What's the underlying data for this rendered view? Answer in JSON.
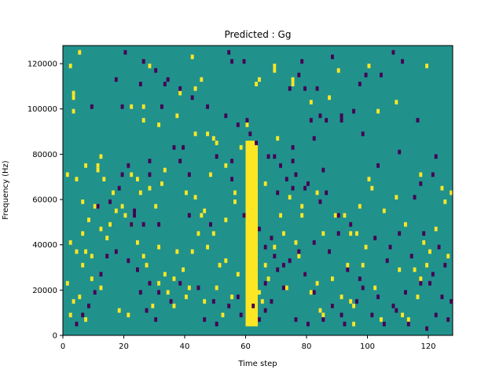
{
  "chart_data": {
    "type": "heatmap",
    "title": "Predicted : Gg",
    "xlabel": "Time step",
    "ylabel": "Frequency (Hz)",
    "xlim": [
      0,
      128
    ],
    "ylim": [
      0,
      128000
    ],
    "xticks": [
      0,
      20,
      40,
      60,
      80,
      100,
      120
    ],
    "yticks": [
      0,
      20000,
      40000,
      60000,
      80000,
      100000,
      120000
    ],
    "grid": false,
    "colors": {
      "background": "#21918c",
      "high": "#fde725",
      "low": "#440154"
    },
    "n_time_steps": 128,
    "n_freq_bins": 64,
    "bin_width_hz": 2000,
    "dominant_band": {
      "time_steps": [
        60,
        64
      ],
      "freq_hz": [
        4000,
        86000
      ],
      "level": "high"
    },
    "cells_high": [
      [
        5,
        124000
      ],
      [
        42,
        122000
      ],
      [
        2,
        118000
      ],
      [
        28,
        118000
      ],
      [
        69,
        118000
      ],
      [
        69,
        116000
      ],
      [
        100,
        118000
      ],
      [
        119,
        118000
      ],
      [
        45,
        112000
      ],
      [
        75,
        112000
      ],
      [
        3,
        106000
      ],
      [
        43,
        108000
      ],
      [
        3,
        104000
      ],
      [
        64,
        112000
      ],
      [
        63,
        110000
      ],
      [
        90,
        116000
      ],
      [
        75,
        110000
      ],
      [
        38,
        106000
      ],
      [
        22,
        100000
      ],
      [
        26,
        100000
      ],
      [
        109,
        102000
      ],
      [
        87,
        104000
      ],
      [
        81,
        102000
      ],
      [
        3,
        98000
      ],
      [
        37,
        96000
      ],
      [
        103,
        98000
      ],
      [
        26,
        94000
      ],
      [
        31,
        92000
      ],
      [
        60,
        92000
      ],
      [
        43,
        88000
      ],
      [
        47,
        88000
      ],
      [
        49,
        86000
      ],
      [
        50,
        84000
      ],
      [
        58,
        82000
      ],
      [
        70,
        86000
      ],
      [
        1,
        70000
      ],
      [
        7,
        74000
      ],
      [
        4,
        68000
      ],
      [
        12,
        78000
      ],
      [
        11,
        74000
      ],
      [
        48,
        70000
      ],
      [
        53,
        74000
      ],
      [
        60,
        74000
      ],
      [
        33,
        72000
      ],
      [
        22,
        70000
      ],
      [
        24,
        68000
      ],
      [
        100,
        68000
      ],
      [
        117,
        70000
      ],
      [
        109,
        60000
      ],
      [
        124,
        64000
      ],
      [
        6,
        58000
      ],
      [
        10,
        56000
      ],
      [
        17,
        54000
      ],
      [
        30,
        56000
      ],
      [
        46,
        54000
      ],
      [
        56,
        58000
      ],
      [
        53,
        50000
      ],
      [
        60,
        48000
      ],
      [
        12,
        46000
      ],
      [
        15,
        48000
      ],
      [
        71,
        52000
      ],
      [
        78,
        52000
      ],
      [
        85,
        44000
      ],
      [
        94,
        44000
      ],
      [
        2,
        40000
      ],
      [
        7,
        36000
      ],
      [
        26,
        34000
      ],
      [
        31,
        38000
      ],
      [
        37,
        36000
      ],
      [
        47,
        38000
      ],
      [
        53,
        32000
      ],
      [
        66,
        30000
      ],
      [
        77,
        34000
      ],
      [
        98,
        30000
      ],
      [
        110,
        28000
      ],
      [
        115,
        28000
      ],
      [
        1,
        22000
      ],
      [
        9,
        24000
      ],
      [
        12,
        20000
      ],
      [
        33,
        26000
      ],
      [
        36,
        24000
      ],
      [
        41,
        20000
      ],
      [
        50,
        20000
      ],
      [
        64,
        18000
      ],
      [
        73,
        20000
      ],
      [
        83,
        22000
      ],
      [
        88,
        24000
      ],
      [
        94,
        14000
      ],
      [
        95,
        12000
      ],
      [
        2,
        8000
      ],
      [
        7,
        6000
      ],
      [
        18,
        10000
      ],
      [
        21,
        8000
      ],
      [
        29,
        12000
      ],
      [
        40,
        16000
      ],
      [
        46,
        14000
      ],
      [
        52,
        8000
      ],
      [
        84,
        10000
      ],
      [
        95,
        4000
      ],
      [
        113,
        6000
      ],
      [
        3,
        14000
      ],
      [
        5,
        16000
      ],
      [
        6,
        30000
      ],
      [
        9,
        34000
      ],
      [
        14,
        42000
      ],
      [
        20,
        52000
      ],
      [
        25,
        62000
      ],
      [
        28,
        64000
      ],
      [
        32,
        66000
      ],
      [
        40,
        62000
      ],
      [
        43,
        60000
      ],
      [
        56,
        62000
      ],
      [
        66,
        66000
      ],
      [
        74,
        60000
      ],
      [
        78,
        56000
      ],
      [
        83,
        62000
      ],
      [
        89,
        52000
      ],
      [
        92,
        52000
      ],
      [
        97,
        56000
      ],
      [
        101,
        64000
      ],
      [
        105,
        54000
      ],
      [
        112,
        48000
      ],
      [
        118,
        40000
      ],
      [
        120,
        36000
      ],
      [
        126,
        34000
      ],
      [
        127,
        62000
      ],
      [
        125,
        58000
      ],
      [
        122,
        46000
      ],
      [
        119,
        30000
      ],
      [
        117,
        24000
      ],
      [
        116,
        16000
      ],
      [
        111,
        8000
      ],
      [
        104,
        6000
      ],
      [
        102,
        20000
      ],
      [
        99,
        38000
      ],
      [
        96,
        44000
      ],
      [
        93,
        30000
      ],
      [
        91,
        16000
      ],
      [
        88,
        12000
      ],
      [
        85,
        8000
      ],
      [
        81,
        18000
      ],
      [
        79,
        26000
      ],
      [
        76,
        40000
      ],
      [
        72,
        44000
      ],
      [
        69,
        38000
      ],
      [
        67,
        24000
      ],
      [
        65,
        14000
      ],
      [
        57,
        26000
      ],
      [
        55,
        16000
      ],
      [
        51,
        30000
      ],
      [
        49,
        44000
      ],
      [
        45,
        52000
      ],
      [
        44,
        44000
      ],
      [
        42,
        36000
      ],
      [
        39,
        28000
      ],
      [
        36,
        12000
      ],
      [
        34,
        18000
      ],
      [
        31,
        22000
      ],
      [
        27,
        30000
      ],
      [
        24,
        40000
      ],
      [
        22,
        48000
      ],
      [
        19,
        56000
      ],
      [
        16,
        62000
      ],
      [
        13,
        68000
      ],
      [
        11,
        72000
      ],
      [
        8,
        50000
      ],
      [
        6,
        44000
      ],
      [
        4,
        36000
      ]
    ],
    "cells_low": [
      [
        54,
        124000
      ],
      [
        55,
        120000
      ],
      [
        59,
        120000
      ],
      [
        78,
        120000
      ],
      [
        108,
        124000
      ],
      [
        111,
        120000
      ],
      [
        88,
        122000
      ],
      [
        77,
        114000
      ],
      [
        99,
        114000
      ],
      [
        97,
        110000
      ],
      [
        25,
        110000
      ],
      [
        17,
        112000
      ],
      [
        33,
        110000
      ],
      [
        83,
        108000
      ],
      [
        79,
        108000
      ],
      [
        74,
        108000
      ],
      [
        104,
        114000
      ],
      [
        9,
        100000
      ],
      [
        19,
        100000
      ],
      [
        32,
        100000
      ],
      [
        81,
        94000
      ],
      [
        91,
        94000
      ],
      [
        91,
        96000
      ],
      [
        95,
        98000
      ],
      [
        84,
        96000
      ],
      [
        86,
        94000
      ],
      [
        116,
        94000
      ],
      [
        60,
        94000
      ],
      [
        98,
        88000
      ],
      [
        82,
        86000
      ],
      [
        75,
        82000
      ],
      [
        39,
        82000
      ],
      [
        36,
        82000
      ],
      [
        50,
        78000
      ],
      [
        55,
        76000
      ],
      [
        69,
        78000
      ],
      [
        75,
        76000
      ],
      [
        85,
        72000
      ],
      [
        103,
        74000
      ],
      [
        110,
        80000
      ],
      [
        122,
        78000
      ],
      [
        121,
        70000
      ],
      [
        117,
        66000
      ],
      [
        115,
        60000
      ],
      [
        86,
        62000
      ],
      [
        80,
        66000
      ],
      [
        75,
        64000
      ],
      [
        70,
        62000
      ],
      [
        73,
        68000
      ],
      [
        55,
        68000
      ],
      [
        41,
        70000
      ],
      [
        38,
        76000
      ],
      [
        28,
        76000
      ],
      [
        28,
        70000
      ],
      [
        19,
        70000
      ],
      [
        21,
        74000
      ],
      [
        18,
        64000
      ],
      [
        15,
        58000
      ],
      [
        11,
        56000
      ],
      [
        23,
        54000
      ],
      [
        23,
        52000
      ],
      [
        22,
        48000
      ],
      [
        26,
        48000
      ],
      [
        31,
        48000
      ],
      [
        41,
        52000
      ],
      [
        48,
        48000
      ],
      [
        59,
        52000
      ],
      [
        64,
        46000
      ],
      [
        66,
        38000
      ],
      [
        68,
        42000
      ],
      [
        69,
        34000
      ],
      [
        72,
        30000
      ],
      [
        77,
        36000
      ],
      [
        82,
        40000
      ],
      [
        87,
        36000
      ],
      [
        90,
        44000
      ],
      [
        93,
        28000
      ],
      [
        97,
        24000
      ],
      [
        106,
        32000
      ],
      [
        110,
        44000
      ],
      [
        118,
        44000
      ],
      [
        123,
        38000
      ],
      [
        125,
        30000
      ],
      [
        121,
        26000
      ],
      [
        117,
        22000
      ],
      [
        112,
        18000
      ],
      [
        108,
        12000
      ],
      [
        103,
        16000
      ],
      [
        98,
        20000
      ],
      [
        96,
        14000
      ],
      [
        91,
        8000
      ],
      [
        88,
        12000
      ],
      [
        82,
        18000
      ],
      [
        79,
        26000
      ],
      [
        72,
        20000
      ],
      [
        68,
        14000
      ],
      [
        66,
        10000
      ],
      [
        64,
        6000
      ],
      [
        57,
        16000
      ],
      [
        54,
        12000
      ],
      [
        49,
        14000
      ],
      [
        44,
        20000
      ],
      [
        38,
        22000
      ],
      [
        35,
        14000
      ],
      [
        31,
        18000
      ],
      [
        28,
        22000
      ],
      [
        24,
        28000
      ],
      [
        21,
        32000
      ],
      [
        17,
        36000
      ],
      [
        14,
        34000
      ],
      [
        12,
        26000
      ],
      [
        10,
        18000
      ],
      [
        8,
        12000
      ],
      [
        6,
        8000
      ],
      [
        4,
        4000
      ],
      [
        25,
        18000
      ],
      [
        27,
        10000
      ],
      [
        30,
        6000
      ],
      [
        46,
        6000
      ],
      [
        50,
        4000
      ],
      [
        58,
        8000
      ],
      [
        62,
        12000
      ],
      [
        66,
        22000
      ],
      [
        70,
        28000
      ],
      [
        74,
        32000
      ],
      [
        76,
        6000
      ],
      [
        80,
        4000
      ],
      [
        85,
        6000
      ],
      [
        92,
        4000
      ],
      [
        101,
        8000
      ],
      [
        105,
        4000
      ],
      [
        109,
        10000
      ],
      [
        113,
        4000
      ],
      [
        119,
        2000
      ],
      [
        122,
        8000
      ],
      [
        126,
        6000
      ],
      [
        127,
        14000
      ],
      [
        124,
        16000
      ],
      [
        120,
        22000
      ],
      [
        114,
        34000
      ],
      [
        107,
        38000
      ],
      [
        102,
        42000
      ],
      [
        94,
        48000
      ],
      [
        90,
        52000
      ],
      [
        84,
        58000
      ],
      [
        79,
        64000
      ],
      [
        76,
        70000
      ],
      [
        71,
        74000
      ],
      [
        67,
        78000
      ],
      [
        63,
        84000
      ],
      [
        61,
        88000
      ],
      [
        57,
        92000
      ],
      [
        53,
        96000
      ],
      [
        47,
        100000
      ],
      [
        42,
        104000
      ],
      [
        38,
        108000
      ],
      [
        34,
        112000
      ],
      [
        30,
        116000
      ],
      [
        26,
        120000
      ],
      [
        20,
        124000
      ]
    ]
  }
}
